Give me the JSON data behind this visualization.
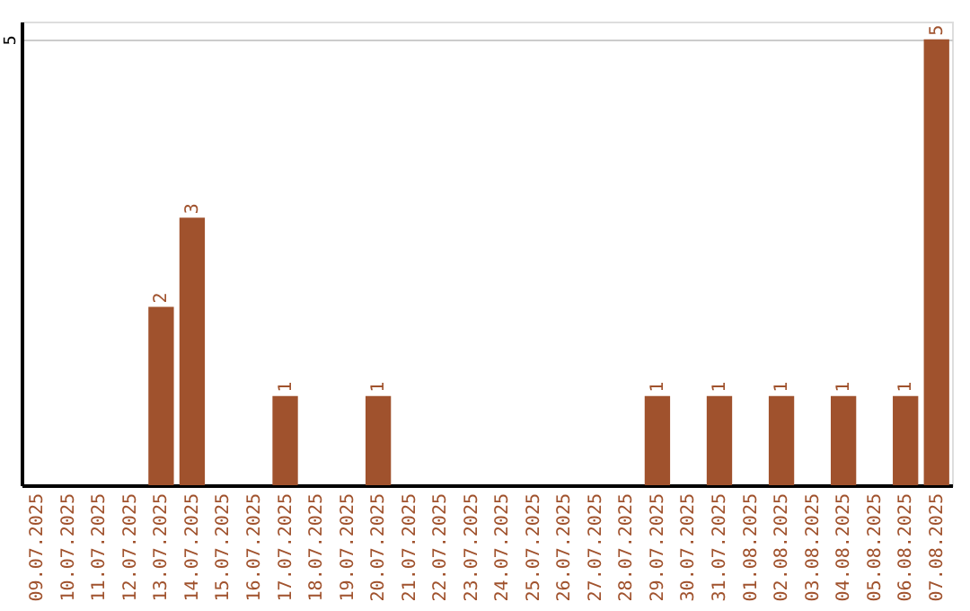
{
  "chart_data": {
    "type": "bar",
    "categories": [
      "09.07.2025",
      "10.07.2025",
      "11.07.2025",
      "12.07.2025",
      "13.07.2025",
      "14.07.2025",
      "15.07.2025",
      "16.07.2025",
      "17.07.2025",
      "18.07.2025",
      "19.07.2025",
      "20.07.2025",
      "21.07.2025",
      "22.07.2025",
      "23.07.2025",
      "24.07.2025",
      "25.07.2025",
      "26.07.2025",
      "27.07.2025",
      "28.07.2025",
      "29.07.2025",
      "30.07.2025",
      "31.07.2025",
      "01.08.2025",
      "02.08.2025",
      "03.08.2025",
      "04.08.2025",
      "05.08.2025",
      "06.08.2025",
      "07.08.2025"
    ],
    "values": [
      0,
      0,
      0,
      0,
      2,
      3,
      0,
      0,
      1,
      0,
      0,
      1,
      0,
      0,
      0,
      0,
      0,
      0,
      0,
      0,
      1,
      0,
      1,
      0,
      1,
      0,
      1,
      0,
      1,
      5
    ],
    "value_labels": [
      null,
      null,
      null,
      null,
      "2",
      "3",
      null,
      null,
      "1",
      null,
      null,
      "1",
      null,
      null,
      null,
      null,
      null,
      null,
      null,
      null,
      "1",
      null,
      "1",
      null,
      "1",
      null,
      "1",
      null,
      "1",
      "5"
    ],
    "color": "#a0522d",
    "ylim": [
      0,
      5.2
    ],
    "yticks": [
      5
    ],
    "grid": "y"
  }
}
